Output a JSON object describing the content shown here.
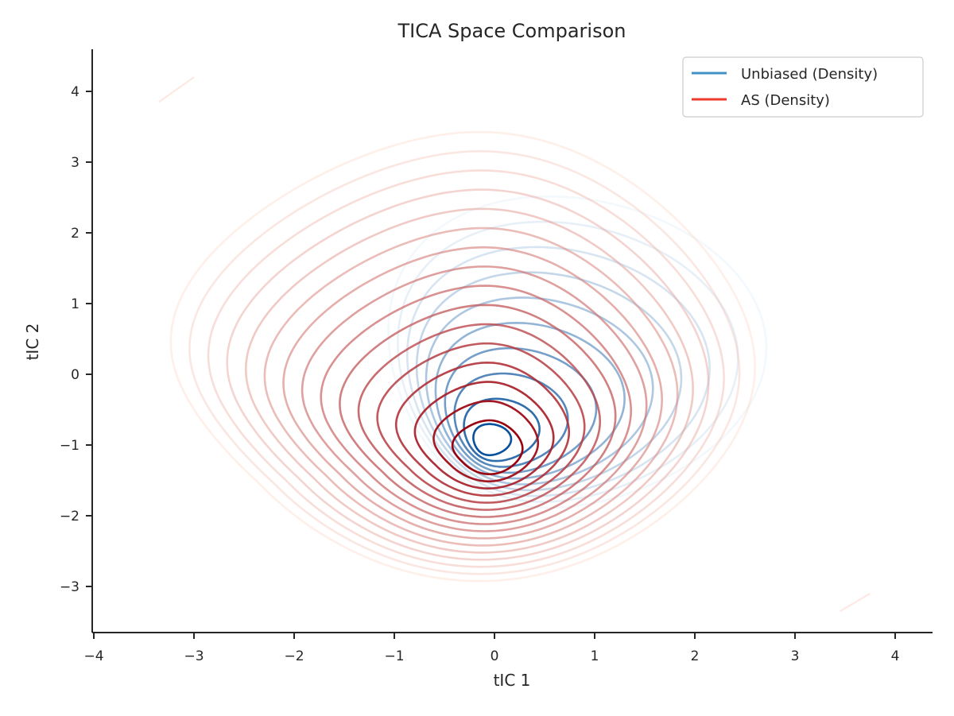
{
  "chart_data": {
    "type": "contour",
    "title": "TICA Space Comparison",
    "xlabel": "tIC 1",
    "ylabel": "tIC 2",
    "xlim": [
      -4,
      4.35
    ],
    "ylim": [
      -3.65,
      4.6
    ],
    "xticks": [
      -4,
      -3,
      -2,
      -1,
      0,
      1,
      2,
      3,
      4
    ],
    "yticks": [
      -3,
      -2,
      -1,
      0,
      1,
      2,
      3,
      4
    ],
    "xtick_labels": [
      "−4",
      "−3",
      "−2",
      "−1",
      "0",
      "1",
      "2",
      "3",
      "4"
    ],
    "ytick_labels": [
      "−3",
      "−2",
      "−1",
      "0",
      "1",
      "2",
      "3",
      "4"
    ],
    "grid": false,
    "legend_position": "top-right",
    "series": [
      {
        "name": "Unbiased (Density)",
        "color": "#4292c6",
        "light_color": "#deebf7",
        "dark_color": "#08519c",
        "levels": 10,
        "peak": [
          -0.05,
          -0.95
        ],
        "extent_x": [
          -1.5,
          2.5
        ],
        "extent_y": [
          -2.6,
          2.7
        ]
      },
      {
        "name": "AS (Density)",
        "color": "#ef3b2c",
        "light_color": "#fdd0c0",
        "dark_color": "#99000d",
        "levels": 16,
        "peak": [
          -0.05,
          -1.05
        ],
        "extent_x": [
          -2.85,
          2.6
        ],
        "extent_y": [
          -2.7,
          2.9
        ]
      }
    ]
  }
}
